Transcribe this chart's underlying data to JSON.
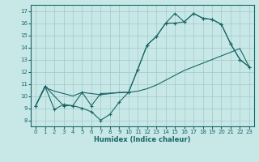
{
  "xlabel": "Humidex (Indice chaleur)",
  "bg_color": "#c8e8e8",
  "grid_color": "#a0c8c8",
  "line_color": "#1a6666",
  "xlim": [
    -0.5,
    23.5
  ],
  "ylim": [
    7.5,
    17.5
  ],
  "xticks": [
    0,
    1,
    2,
    3,
    4,
    5,
    6,
    7,
    8,
    9,
    10,
    11,
    12,
    13,
    14,
    15,
    16,
    17,
    18,
    19,
    20,
    21,
    22,
    23
  ],
  "yticks": [
    8,
    9,
    10,
    11,
    12,
    13,
    14,
    15,
    16,
    17
  ],
  "line1_x": [
    0,
    1,
    2,
    3,
    4,
    5,
    6,
    7,
    8,
    9,
    10,
    11,
    12,
    13,
    14,
    15,
    16,
    17,
    18,
    19,
    20,
    21,
    22,
    23
  ],
  "line1_y": [
    9.2,
    10.8,
    8.9,
    9.3,
    9.2,
    9.0,
    8.7,
    8.0,
    8.5,
    9.5,
    10.3,
    12.2,
    14.2,
    14.9,
    16.0,
    16.0,
    16.1,
    16.8,
    16.4,
    16.3,
    15.9,
    14.3,
    13.0,
    12.4
  ],
  "line2_x": [
    0,
    1,
    2,
    3,
    4,
    5,
    6,
    7,
    8,
    9,
    10,
    11,
    12,
    13,
    14,
    15,
    16,
    17,
    18,
    19,
    20,
    21,
    22,
    23
  ],
  "line2_y": [
    9.2,
    10.7,
    10.4,
    10.2,
    10.0,
    10.3,
    10.2,
    10.1,
    10.2,
    10.3,
    10.3,
    10.4,
    10.6,
    10.9,
    11.3,
    11.7,
    12.1,
    12.4,
    12.7,
    13.0,
    13.3,
    13.6,
    13.9,
    12.4
  ],
  "line3_x": [
    0,
    1,
    3,
    4,
    5,
    6,
    7,
    10,
    11,
    12,
    13,
    14,
    15,
    16,
    17,
    18,
    19,
    20,
    21,
    22,
    23
  ],
  "line3_y": [
    9.2,
    10.8,
    9.2,
    9.2,
    10.3,
    9.2,
    10.2,
    10.3,
    12.2,
    14.2,
    14.9,
    16.0,
    16.8,
    16.1,
    16.8,
    16.4,
    16.3,
    15.9,
    14.3,
    13.0,
    12.4
  ]
}
